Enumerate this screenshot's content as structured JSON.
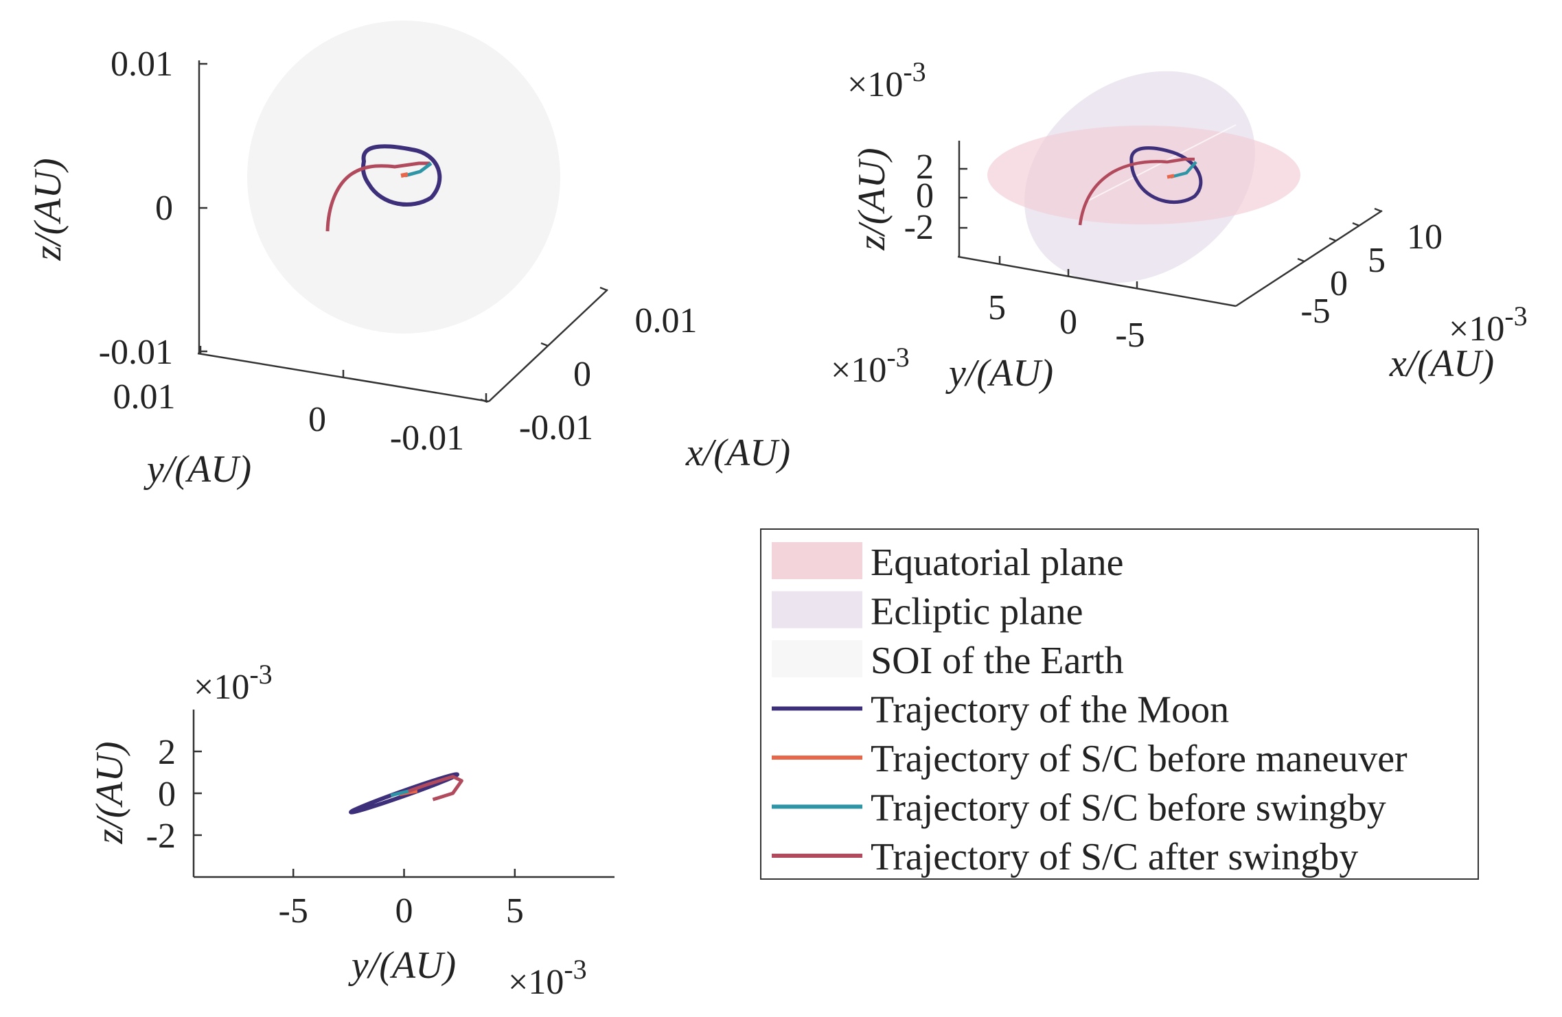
{
  "legend": {
    "placement": "bottom-right",
    "entries": [
      {
        "label": "Equatorial plane",
        "kind": "patch",
        "color": "#f2d4da"
      },
      {
        "label": "Ecliptic plane",
        "kind": "patch",
        "color": "#ece5f0"
      },
      {
        "label": "SOI of the Earth",
        "kind": "patch",
        "color": "#f7f7f7"
      },
      {
        "label": "Trajectory of the Moon",
        "kind": "line",
        "color": "#3d2f7a"
      },
      {
        "label": "Trajectory of S/C before maneuver",
        "kind": "line",
        "color": "#e8664a"
      },
      {
        "label": "Trajectory of S/C before swingby",
        "kind": "line",
        "color": "#2e95a6"
      },
      {
        "label": "Trajectory of S/C after swingby",
        "kind": "line",
        "color": "#b04a5c"
      }
    ]
  },
  "chart_data": [
    {
      "type": "line",
      "view": "3d",
      "x_axis": {
        "label": "x/(AU)",
        "ticks": [
          "-0.01",
          "0",
          "0.01"
        ],
        "range": [
          -0.012,
          0.012
        ]
      },
      "y_axis": {
        "label": "y/(AU)",
        "ticks": [
          "0.01",
          "0",
          "-0.01"
        ],
        "range": [
          -0.012,
          0.012
        ]
      },
      "z_axis": {
        "label": "z/(AU)",
        "ticks": [
          "0.01",
          "0",
          "-0.01"
        ],
        "range": [
          -0.01,
          0.01
        ]
      },
      "exponent": "",
      "surfaces": [
        "SOI of the Earth"
      ],
      "series": [
        {
          "name": "Trajectory of the Moon",
          "color": "#3d2f7a"
        },
        {
          "name": "Trajectory of S/C before maneuver",
          "color": "#e8664a"
        },
        {
          "name": "Trajectory of S/C before swingby",
          "color": "#2e95a6"
        },
        {
          "name": "Trajectory of S/C after swingby",
          "color": "#b04a5c"
        }
      ]
    },
    {
      "type": "line",
      "view": "3d",
      "x_axis": {
        "label": "x/(AU)",
        "ticks": [
          "-5",
          "0",
          "5",
          "10"
        ],
        "range": [
          -8,
          12
        ]
      },
      "y_axis": {
        "label": "y/(AU)",
        "ticks": [
          "5",
          "0",
          "-5"
        ],
        "range": [
          -8,
          8
        ]
      },
      "z_axis": {
        "label": "z/(AU)",
        "ticks": [
          "2",
          "0",
          "-2"
        ],
        "range": [
          -3,
          3
        ]
      },
      "exponent_x": "×10-3",
      "exponent_y": "×10-3",
      "exponent_z": "×10-3",
      "surfaces": [
        "Equatorial plane",
        "Ecliptic plane"
      ],
      "series": [
        {
          "name": "Trajectory of the Moon",
          "color": "#3d2f7a"
        },
        {
          "name": "Trajectory of S/C before maneuver",
          "color": "#e8664a"
        },
        {
          "name": "Trajectory of S/C before swingby",
          "color": "#2e95a6"
        },
        {
          "name": "Trajectory of S/C after swingby",
          "color": "#b04a5c"
        }
      ]
    },
    {
      "type": "line",
      "view": "2d",
      "x_axis": {
        "label": "y/(AU)",
        "ticks": [
          "-5",
          "0",
          "5"
        ],
        "range": [
          -9.5,
          9.5
        ]
      },
      "y_axis": {
        "label": "z/(AU)",
        "ticks": [
          "2",
          "0",
          "-2"
        ],
        "range": [
          -4,
          4
        ]
      },
      "exponent_x": "×10-3",
      "exponent_y": "×10-3",
      "series": [
        {
          "name": "Trajectory of the Moon",
          "color": "#3d2f7a",
          "ellipse": {
            "center": [
              0,
              0
            ],
            "endpoints": [
              [
                -2.4,
                -0.9
              ],
              [
                2.4,
                0.9
              ]
            ],
            "half_width": 0.12
          }
        },
        {
          "name": "Trajectory of S/C before maneuver",
          "color": "#e8664a",
          "x": [
            -0.2,
            0.3,
            0.6
          ],
          "y": [
            -0.05,
            0.05,
            0.1
          ]
        },
        {
          "name": "Trajectory of S/C before swingby",
          "color": "#2e95a6",
          "x": [
            -0.6,
            -0.2,
            0.2
          ],
          "y": [
            -0.1,
            0.0,
            0.1
          ]
        },
        {
          "name": "Trajectory of S/C after swingby",
          "color": "#b04a5c",
          "x": [
            0.2,
            1.0,
            2.2,
            2.6,
            2.2,
            1.3
          ],
          "y": [
            0.1,
            0.4,
            0.8,
            0.6,
            0.0,
            -0.3
          ]
        }
      ]
    }
  ]
}
